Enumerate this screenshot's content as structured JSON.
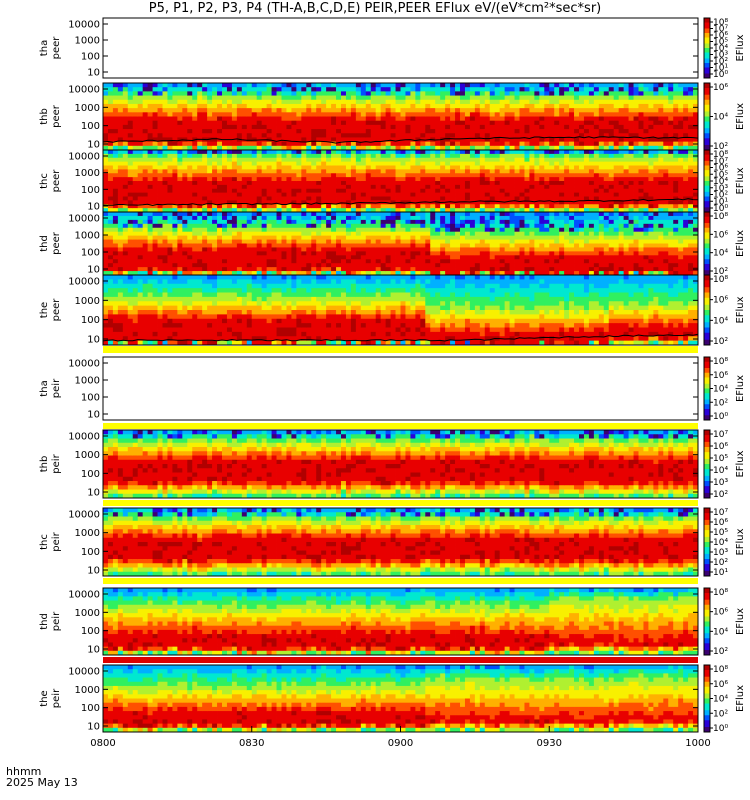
{
  "title": "P5, P1, P2, P3, P4 (TH-A,B,C,D,E) PEIR,PEER EFlux eV/(eV*cm²*sec*sr)",
  "footer": {
    "line1": "hhmm",
    "line2": "2025 May 13"
  },
  "colors": {
    "colormap": [
      "#3a0070",
      "#2a00d8",
      "#0050ff",
      "#00b0ff",
      "#00e8d0",
      "#30f060",
      "#b0f030",
      "#f8f000",
      "#ffb000",
      "#ff5000",
      "#e80000",
      "#b00000"
    ],
    "background": "#ffffff",
    "separator_yellow": "#ffff00",
    "separator_red": "#dd0000",
    "flag_black": "#000000"
  },
  "chart_data": {
    "type": "heatmap",
    "x_axis": {
      "label": "hhmm",
      "date": "2025 May 13",
      "range": [
        "0800",
        "1000"
      ],
      "ticks": [
        "0800",
        "0830",
        "0900",
        "0930",
        "1000"
      ]
    },
    "y_scale": "log",
    "z_scale": "log",
    "z_label": "EFlux",
    "panels": [
      {
        "id": "tha-peer",
        "ylabel_top": "tha",
        "ylabel_bottom": "peer",
        "y_ticks": [
          "10000",
          "1000",
          "100",
          "10"
        ],
        "cbar_ticks": [
          "10⁸",
          "10⁷",
          "10⁶",
          "10⁵",
          "10⁴",
          "10³",
          "10²",
          "10¹",
          "10⁰"
        ],
        "empty": true
      },
      {
        "id": "thb-peer",
        "ylabel_top": "thb",
        "ylabel_bottom": "peer",
        "y_ticks": [
          "10000",
          "1000",
          "100",
          "10"
        ],
        "cbar_ticks": [
          "10⁶",
          "10⁴",
          "10²"
        ],
        "profile": [
          {
            "t": [
              0,
              1
            ],
            "top": 0.2,
            "mid": 0.55,
            "low": 0.9
          }
        ],
        "noise_top": true,
        "line": [
          0.05,
          0.09,
          0.04,
          0.1,
          0.12,
          0.11
        ]
      },
      {
        "id": "thc-peer",
        "ylabel_top": "thc",
        "ylabel_bottom": "peer",
        "y_ticks": [
          "10000",
          "1000",
          "100",
          "10"
        ],
        "cbar_ticks": [
          "10⁸",
          "10⁷",
          "10⁶",
          "10⁵",
          "10⁴",
          "10³",
          "10²",
          "10¹",
          "10⁰"
        ],
        "profile": [
          {
            "t": [
              0,
              1
            ],
            "top": 0.1,
            "mid": 0.5,
            "low": 0.88
          }
        ],
        "noise_top": true,
        "line": [
          0.03,
          0.05,
          0.06,
          0.09,
          0.1,
          0.13
        ]
      },
      {
        "id": "thd-peer",
        "ylabel_top": "thd",
        "ylabel_bottom": "peer",
        "y_ticks": [
          "10000",
          "1000",
          "100",
          "10"
        ],
        "cbar_ticks": [
          "10⁸",
          "10⁶",
          "10⁴",
          "10²"
        ],
        "profile": [
          {
            "t": [
              0,
              0.55
            ],
            "top": 0.25,
            "mid": 0.6,
            "low": 0.92
          },
          {
            "t": [
              0.55,
              1
            ],
            "top": 0.35,
            "mid": 0.72,
            "low": 0.95
          }
        ],
        "noise_top": true,
        "line": []
      },
      {
        "id": "the-peer",
        "ylabel_top": "the",
        "ylabel_bottom": "peer",
        "y_ticks": [
          "10000",
          "1000",
          "100",
          "10"
        ],
        "cbar_ticks": [
          "10⁸",
          "10⁶",
          "10⁴",
          "10²"
        ],
        "profile": [
          {
            "t": [
              0,
              0.54
            ],
            "top": 0.3,
            "mid": 0.65,
            "low": 0.95
          },
          {
            "t": [
              0.54,
              0.85
            ],
            "top": 0.45,
            "mid": 0.85,
            "low": 0.98
          },
          {
            "t": [
              0.85,
              1
            ],
            "top": 0.4,
            "mid": 0.75,
            "low": 0.9
          }
        ],
        "noise_top": false,
        "line": [
          0.0,
          0.0,
          0.0,
          0.0,
          0.05,
          0.08
        ]
      },
      {
        "id": "tha-peir",
        "ylabel_top": "tha",
        "ylabel_bottom": "peir",
        "y_ticks": [
          "10000",
          "1000",
          "100",
          "10"
        ],
        "cbar_ticks": [
          "10⁸",
          "10⁶",
          "10⁴",
          "10²",
          "10⁰"
        ],
        "empty": true
      },
      {
        "id": "thb-peir",
        "ylabel_top": "thb",
        "ylabel_bottom": "peir",
        "y_ticks": [
          "10000",
          "1000",
          "100",
          "10"
        ],
        "cbar_ticks": [
          "10⁷",
          "10⁶",
          "10⁵",
          "10⁴",
          "10³",
          "10²"
        ],
        "profile": [
          {
            "t": [
              0,
              1
            ],
            "top": 0.15,
            "mid": 0.45,
            "low": 0.75
          }
        ],
        "noise_top": true,
        "line": []
      },
      {
        "id": "thc-peir",
        "ylabel_top": "thc",
        "ylabel_bottom": "peir",
        "y_ticks": [
          "10000",
          "1000",
          "100",
          "10"
        ],
        "cbar_ticks": [
          "10⁷",
          "10⁶",
          "10⁵",
          "10⁴",
          "10³",
          "10²",
          "10¹"
        ],
        "profile": [
          {
            "t": [
              0,
              1
            ],
            "top": 0.15,
            "mid": 0.45,
            "low": 0.75
          }
        ],
        "noise_top": true,
        "line": []
      },
      {
        "id": "thd-peir",
        "ylabel_top": "thd",
        "ylabel_bottom": "peir",
        "y_ticks": [
          "10000",
          "1000",
          "100",
          "10"
        ],
        "cbar_ticks": [
          "10⁸",
          "10⁶",
          "10⁴",
          "10²"
        ],
        "profile": [
          {
            "t": [
              0,
              0.75
            ],
            "top": 0.25,
            "mid": 0.7,
            "low": 0.9
          },
          {
            "t": [
              0.75,
              1
            ],
            "top": 0.15,
            "mid": 0.8,
            "low": 0.85
          }
        ],
        "noise_top": false,
        "line": []
      },
      {
        "id": "the-peir",
        "ylabel_top": "the",
        "ylabel_bottom": "peir",
        "y_ticks": [
          "10000",
          "1000",
          "100",
          "10"
        ],
        "cbar_ticks": [
          "10⁸",
          "10⁶",
          "10⁴",
          "10²",
          "10⁰"
        ],
        "profile": [
          {
            "t": [
              0,
              0.54
            ],
            "top": 0.3,
            "mid": 0.72,
            "low": 0.9
          },
          {
            "t": [
              0.54,
              1
            ],
            "top": 0.2,
            "mid": 0.82,
            "low": 0.85
          }
        ],
        "noise_top": false,
        "line": []
      }
    ]
  }
}
